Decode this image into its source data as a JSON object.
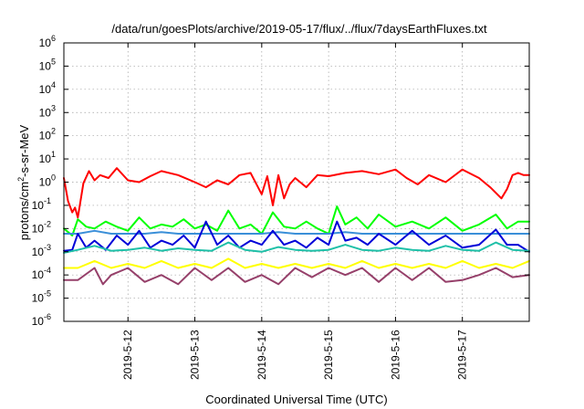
{
  "chart_data": {
    "type": "line",
    "title": "/data/run/goesPlots/archive/2019-05-17/flux/../flux/7daysEarthFluxes.txt",
    "xlabel": "Coordinated Universal Time (UTC)",
    "ylabel": {
      "base": "protons/cm",
      "sup": "2",
      "rest": "-s-sr-MeV"
    },
    "y_scale": "log",
    "ylim": [
      1e-06,
      1000000.0
    ],
    "xlim": [
      "2019-05-11T01:00",
      "2019-05-18T00:00"
    ],
    "grid": true,
    "y_ticks": [
      {
        "base": "10",
        "exp": "6",
        "value": 1000000.0
      },
      {
        "base": "10",
        "exp": "5",
        "value": 100000.0
      },
      {
        "base": "10",
        "exp": "4",
        "value": 10000.0
      },
      {
        "base": "10",
        "exp": "3",
        "value": 1000.0
      },
      {
        "base": "10",
        "exp": "2",
        "value": 100.0
      },
      {
        "base": "10",
        "exp": "1",
        "value": 10.0
      },
      {
        "base": "10",
        "exp": "0",
        "value": 1.0
      },
      {
        "base": "10",
        "exp": "-1",
        "value": 0.1
      },
      {
        "base": "10",
        "exp": "-2",
        "value": 0.01
      },
      {
        "base": "10",
        "exp": "-3",
        "value": 0.001
      },
      {
        "base": "10",
        "exp": "-4",
        "value": 0.0001
      },
      {
        "base": "10",
        "exp": "-5",
        "value": 1e-05
      },
      {
        "base": "10",
        "exp": "-6",
        "value": 1e-06
      }
    ],
    "x_ticks": [
      {
        "label": "2019-5-12",
        "value": "2019-05-12T00:00"
      },
      {
        "label": "2019-5-13",
        "value": "2019-05-13T00:00"
      },
      {
        "label": "2019-5-14",
        "value": "2019-05-14T00:00"
      },
      {
        "label": "2019-5-15",
        "value": "2019-05-15T00:00"
      },
      {
        "label": "2019-5-16",
        "value": "2019-05-16T00:00"
      },
      {
        "label": "2019-5-17",
        "value": "2019-05-17T00:00"
      }
    ],
    "series": [
      {
        "color": "#ff0000",
        "x": [
          "2019-05-11T01:00",
          "2019-05-11T02:30",
          "2019-05-11T04:00",
          "2019-05-11T05:00",
          "2019-05-11T06:00",
          "2019-05-11T08:00",
          "2019-05-11T10:00",
          "2019-05-11T12:00",
          "2019-05-11T14:00",
          "2019-05-11T17:00",
          "2019-05-11T20:00",
          "2019-05-12T00:00",
          "2019-05-12T04:00",
          "2019-05-12T08:00",
          "2019-05-12T12:00",
          "2019-05-12T18:00",
          "2019-05-13T00:00",
          "2019-05-13T04:00",
          "2019-05-13T08:00",
          "2019-05-13T12:00",
          "2019-05-13T16:00",
          "2019-05-13T20:00",
          "2019-05-14T00:00",
          "2019-05-14T02:00",
          "2019-05-14T04:00",
          "2019-05-14T06:00",
          "2019-05-14T08:00",
          "2019-05-14T10:00",
          "2019-05-14T12:00",
          "2019-05-14T16:00",
          "2019-05-14T20:00",
          "2019-05-15T00:00",
          "2019-05-15T06:00",
          "2019-05-15T12:00",
          "2019-05-15T18:00",
          "2019-05-16T00:00",
          "2019-05-16T04:00",
          "2019-05-16T08:00",
          "2019-05-16T12:00",
          "2019-05-16T18:00",
          "2019-05-17T00:00",
          "2019-05-17T06:00",
          "2019-05-17T10:00",
          "2019-05-17T14:00",
          "2019-05-17T16:00",
          "2019-05-17T18:00",
          "2019-05-17T20:00",
          "2019-05-17T22:00",
          "2019-05-18T00:00"
        ],
        "values": [
          1.5,
          0.15,
          0.05,
          0.08,
          0.03,
          0.9,
          3,
          1.2,
          2,
          1.5,
          4,
          1.2,
          1.0,
          1.8,
          3,
          2,
          1.0,
          0.6,
          1.2,
          0.8,
          2,
          2.5,
          0.3,
          1.8,
          0.1,
          2,
          0.2,
          0.8,
          1.5,
          0.6,
          2,
          1.8,
          2.5,
          3,
          2.2,
          3.5,
          1.5,
          0.8,
          2,
          1.0,
          3.5,
          1.5,
          0.6,
          0.2,
          0.5,
          2,
          2.5,
          2.0,
          2.0
        ]
      },
      {
        "color": "#00ff00",
        "x": [
          "2019-05-11T01:00",
          "2019-05-11T04:00",
          "2019-05-11T06:00",
          "2019-05-11T09:00",
          "2019-05-11T12:00",
          "2019-05-11T16:00",
          "2019-05-11T20:00",
          "2019-05-12T00:00",
          "2019-05-12T04:00",
          "2019-05-12T08:00",
          "2019-05-12T12:00",
          "2019-05-12T16:00",
          "2019-05-12T20:00",
          "2019-05-13T00:00",
          "2019-05-13T04:00",
          "2019-05-13T08:00",
          "2019-05-13T12:00",
          "2019-05-13T16:00",
          "2019-05-13T20:00",
          "2019-05-14T00:00",
          "2019-05-14T04:00",
          "2019-05-14T08:00",
          "2019-05-14T12:00",
          "2019-05-14T16:00",
          "2019-05-14T20:00",
          "2019-05-15T00:00",
          "2019-05-15T03:00",
          "2019-05-15T06:00",
          "2019-05-15T10:00",
          "2019-05-15T14:00",
          "2019-05-15T18:00",
          "2019-05-16T00:00",
          "2019-05-16T06:00",
          "2019-05-16T12:00",
          "2019-05-16T18:00",
          "2019-05-17T00:00",
          "2019-05-17T06:00",
          "2019-05-17T12:00",
          "2019-05-17T16:00",
          "2019-05-17T20:00",
          "2019-05-18T00:00"
        ],
        "values": [
          0.01,
          0.005,
          0.025,
          0.012,
          0.01,
          0.02,
          0.012,
          0.008,
          0.03,
          0.01,
          0.015,
          0.012,
          0.025,
          0.01,
          0.015,
          0.008,
          0.06,
          0.01,
          0.015,
          0.006,
          0.05,
          0.012,
          0.01,
          0.02,
          0.01,
          0.006,
          0.09,
          0.015,
          0.03,
          0.01,
          0.04,
          0.012,
          0.02,
          0.01,
          0.03,
          0.008,
          0.015,
          0.04,
          0.01,
          0.02,
          0.02
        ]
      },
      {
        "color": "#3a8fd8",
        "x": [
          "2019-05-11T01:00",
          "2019-05-11T06:00",
          "2019-05-11T12:00",
          "2019-05-11T18:00",
          "2019-05-12T00:00",
          "2019-05-12T06:00",
          "2019-05-12T12:00",
          "2019-05-12T18:00",
          "2019-05-13T00:00",
          "2019-05-13T06:00",
          "2019-05-13T12:00",
          "2019-05-13T18:00",
          "2019-05-14T00:00",
          "2019-05-14T06:00",
          "2019-05-14T12:00",
          "2019-05-14T18:00",
          "2019-05-15T00:00",
          "2019-05-15T06:00",
          "2019-05-15T12:00",
          "2019-05-15T18:00",
          "2019-05-16T00:00",
          "2019-05-16T06:00",
          "2019-05-16T12:00",
          "2019-05-16T18:00",
          "2019-05-17T00:00",
          "2019-05-17T06:00",
          "2019-05-17T12:00",
          "2019-05-17T18:00",
          "2019-05-18T00:00"
        ],
        "values": [
          0.006,
          0.006,
          0.008,
          0.006,
          0.006,
          0.006,
          0.007,
          0.006,
          0.006,
          0.006,
          0.006,
          0.006,
          0.006,
          0.007,
          0.006,
          0.006,
          0.006,
          0.007,
          0.006,
          0.006,
          0.006,
          0.006,
          0.006,
          0.006,
          0.006,
          0.006,
          0.006,
          0.006,
          0.006
        ]
      },
      {
        "color": "#0000d8",
        "x": [
          "2019-05-11T01:00",
          "2019-05-11T04:00",
          "2019-05-11T06:00",
          "2019-05-11T09:00",
          "2019-05-11T12:00",
          "2019-05-11T16:00",
          "2019-05-11T20:00",
          "2019-05-12T00:00",
          "2019-05-12T04:00",
          "2019-05-12T08:00",
          "2019-05-12T12:00",
          "2019-05-12T16:00",
          "2019-05-12T20:00",
          "2019-05-13T00:00",
          "2019-05-13T04:00",
          "2019-05-13T08:00",
          "2019-05-13T12:00",
          "2019-05-13T16:00",
          "2019-05-13T20:00",
          "2019-05-14T00:00",
          "2019-05-14T04:00",
          "2019-05-14T08:00",
          "2019-05-14T12:00",
          "2019-05-14T16:00",
          "2019-05-14T20:00",
          "2019-05-15T00:00",
          "2019-05-15T03:00",
          "2019-05-15T06:00",
          "2019-05-15T10:00",
          "2019-05-15T14:00",
          "2019-05-15T18:00",
          "2019-05-16T00:00",
          "2019-05-16T06:00",
          "2019-05-16T12:00",
          "2019-05-16T18:00",
          "2019-05-17T00:00",
          "2019-05-17T06:00",
          "2019-05-17T12:00",
          "2019-05-17T16:00",
          "2019-05-17T20:00",
          "2019-05-18T00:00"
        ],
        "values": [
          0.0011,
          0.0012,
          0.006,
          0.0015,
          0.003,
          0.0012,
          0.005,
          0.002,
          0.008,
          0.0015,
          0.003,
          0.002,
          0.005,
          0.0015,
          0.02,
          0.002,
          0.005,
          0.0015,
          0.003,
          0.002,
          0.008,
          0.002,
          0.003,
          0.0015,
          0.004,
          0.002,
          0.02,
          0.003,
          0.004,
          0.002,
          0.006,
          0.002,
          0.008,
          0.002,
          0.005,
          0.0015,
          0.002,
          0.009,
          0.002,
          0.002,
          0.001
        ]
      },
      {
        "color": "#1fc0a8",
        "x": [
          "2019-05-11T01:00",
          "2019-05-11T06:00",
          "2019-05-11T12:00",
          "2019-05-11T18:00",
          "2019-05-12T00:00",
          "2019-05-12T06:00",
          "2019-05-12T12:00",
          "2019-05-12T18:00",
          "2019-05-13T00:00",
          "2019-05-13T06:00",
          "2019-05-13T12:00",
          "2019-05-13T18:00",
          "2019-05-14T00:00",
          "2019-05-14T06:00",
          "2019-05-14T12:00",
          "2019-05-14T18:00",
          "2019-05-15T00:00",
          "2019-05-15T06:00",
          "2019-05-15T12:00",
          "2019-05-15T18:00",
          "2019-05-16T00:00",
          "2019-05-16T06:00",
          "2019-05-16T12:00",
          "2019-05-16T18:00",
          "2019-05-17T00:00",
          "2019-05-17T06:00",
          "2019-05-17T12:00",
          "2019-05-17T18:00",
          "2019-05-18T00:00"
        ],
        "values": [
          0.0009,
          0.0012,
          0.0018,
          0.0011,
          0.0012,
          0.0015,
          0.0011,
          0.0014,
          0.0012,
          0.0011,
          0.0025,
          0.0012,
          0.001,
          0.0016,
          0.0012,
          0.0011,
          0.0012,
          0.002,
          0.0012,
          0.0011,
          0.0015,
          0.0012,
          0.0011,
          0.0018,
          0.0012,
          0.0011,
          0.0025,
          0.0012,
          0.0011
        ]
      },
      {
        "color": "#ffff00",
        "x": [
          "2019-05-11T01:00",
          "2019-05-11T06:00",
          "2019-05-11T12:00",
          "2019-05-11T18:00",
          "2019-05-12T00:00",
          "2019-05-12T06:00",
          "2019-05-12T12:00",
          "2019-05-12T18:00",
          "2019-05-13T00:00",
          "2019-05-13T06:00",
          "2019-05-13T12:00",
          "2019-05-13T18:00",
          "2019-05-14T00:00",
          "2019-05-14T06:00",
          "2019-05-14T12:00",
          "2019-05-14T18:00",
          "2019-05-15T00:00",
          "2019-05-15T06:00",
          "2019-05-15T12:00",
          "2019-05-15T18:00",
          "2019-05-16T00:00",
          "2019-05-16T06:00",
          "2019-05-16T12:00",
          "2019-05-16T18:00",
          "2019-05-17T00:00",
          "2019-05-17T06:00",
          "2019-05-17T12:00",
          "2019-05-17T18:00",
          "2019-05-18T00:00"
        ],
        "values": [
          0.0002,
          0.0002,
          0.0004,
          0.0002,
          0.0003,
          0.0002,
          0.0004,
          0.0002,
          0.0003,
          0.0002,
          0.0005,
          0.0002,
          0.0003,
          0.0002,
          0.0003,
          0.0002,
          0.0003,
          0.0002,
          0.0004,
          0.0002,
          0.0003,
          0.0002,
          0.0003,
          0.0002,
          0.0004,
          0.0002,
          0.0003,
          0.0002,
          0.0004
        ]
      },
      {
        "color": "#96406a",
        "x": [
          "2019-05-11T01:00",
          "2019-05-11T06:00",
          "2019-05-11T12:00",
          "2019-05-11T15:00",
          "2019-05-11T18:00",
          "2019-05-12T00:00",
          "2019-05-12T06:00",
          "2019-05-12T12:00",
          "2019-05-12T18:00",
          "2019-05-13T00:00",
          "2019-05-13T06:00",
          "2019-05-13T12:00",
          "2019-05-13T18:00",
          "2019-05-14T00:00",
          "2019-05-14T06:00",
          "2019-05-14T12:00",
          "2019-05-14T18:00",
          "2019-05-15T00:00",
          "2019-05-15T06:00",
          "2019-05-15T12:00",
          "2019-05-15T18:00",
          "2019-05-16T00:00",
          "2019-05-16T06:00",
          "2019-05-16T12:00",
          "2019-05-16T18:00",
          "2019-05-17T00:00",
          "2019-05-17T06:00",
          "2019-05-17T12:00",
          "2019-05-17T18:00",
          "2019-05-18T00:00"
        ],
        "values": [
          6e-05,
          6e-05,
          0.0002,
          4e-05,
          0.0001,
          0.0002,
          5e-05,
          0.0001,
          4e-05,
          0.0002,
          6e-05,
          0.0002,
          5e-05,
          0.0001,
          4e-05,
          0.0002,
          8e-05,
          0.0002,
          0.0001,
          0.0002,
          5e-05,
          0.0002,
          6e-05,
          0.0002,
          5e-05,
          6e-05,
          0.0001,
          0.0002,
          8e-05,
          0.0001
        ]
      }
    ]
  }
}
